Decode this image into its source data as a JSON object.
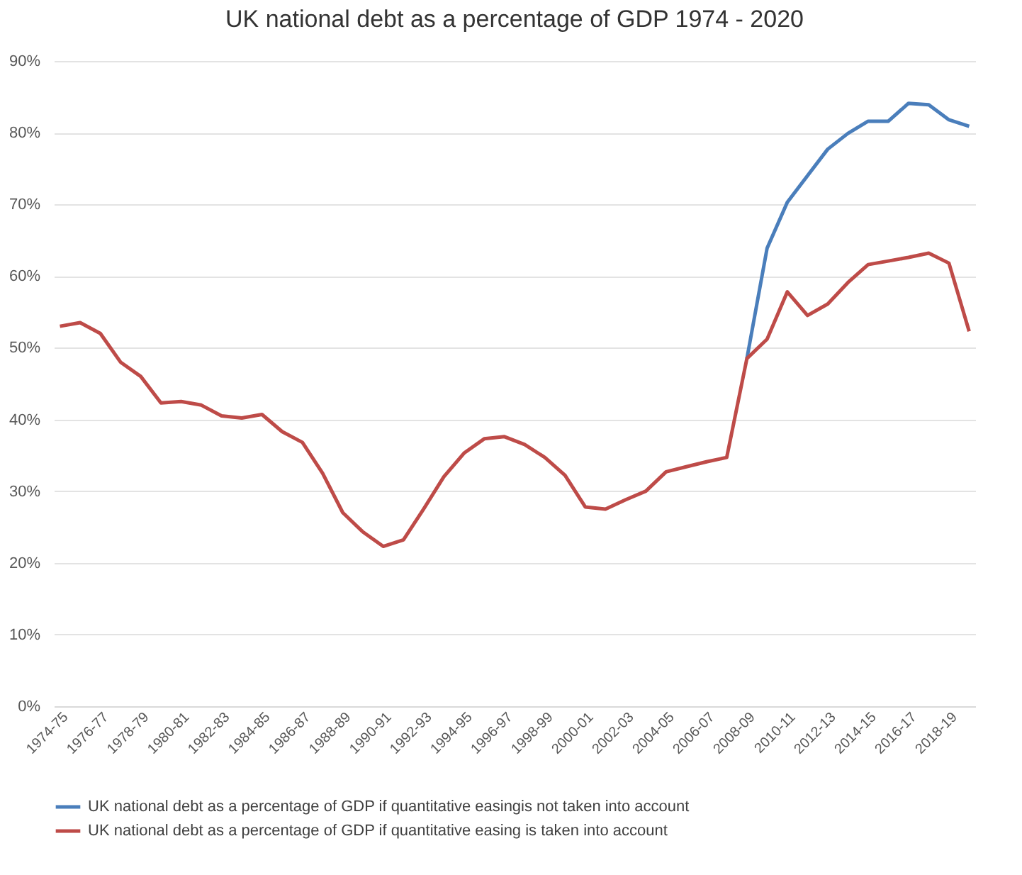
{
  "chart_data": {
    "type": "line",
    "title": "UK national debt as a percentage of GDP 1974 - 2020",
    "categories": [
      "1974-75",
      null,
      "1976-77",
      null,
      "1978-79",
      null,
      "1980-81",
      null,
      "1982-83",
      null,
      "1984-85",
      null,
      "1986-87",
      null,
      "1988-89",
      null,
      "1990-91",
      null,
      "1992-93",
      null,
      "1994-95",
      null,
      "1996-97",
      null,
      "1998-99",
      null,
      "2000-01",
      null,
      "2002-03",
      null,
      "2004-05",
      null,
      "2006-07",
      null,
      "2008-09",
      null,
      "2010-11",
      null,
      "2012-13",
      null,
      "2014-15",
      null,
      "2016-17",
      null,
      "2018-19",
      null
    ],
    "series": [
      {
        "name": "UK national debt as a percentage of GDP if quantitative easingis not taken into account",
        "color": "#4a7ebb",
        "values": [
          null,
          null,
          null,
          null,
          null,
          null,
          null,
          null,
          null,
          null,
          null,
          null,
          null,
          null,
          null,
          null,
          null,
          null,
          null,
          null,
          null,
          null,
          null,
          null,
          null,
          null,
          null,
          null,
          null,
          null,
          null,
          null,
          null,
          null,
          48.5,
          63.9,
          70.3,
          74,
          77.7,
          79.9,
          81.6,
          81.6,
          84.1,
          83.9,
          81.8,
          80.9
        ]
      },
      {
        "name": "UK national debt as a percentage of GDP if quantitative easing is taken into account",
        "color": "#be4b48",
        "values": [
          53,
          53.5,
          52,
          48,
          46,
          42.3,
          42.5,
          42,
          40.5,
          40.2,
          40.7,
          38.3,
          36.8,
          32.5,
          27,
          24.3,
          22.3,
          23.2,
          27.5,
          32,
          35.3,
          37.3,
          37.6,
          36.5,
          34.7,
          32.2,
          27.8,
          27.5,
          28.8,
          30,
          32.7,
          33.4,
          34.1,
          34.7,
          48.5,
          51.2,
          57.8,
          54.5,
          56.1,
          59.1,
          61.6,
          62.1,
          62.6,
          63.2,
          61.8,
          52.3
        ]
      }
    ],
    "ylim": [
      0,
      90
    ],
    "yticks": [
      {
        "value": 0,
        "label": "0%"
      },
      {
        "value": 10,
        "label": "10%"
      },
      {
        "value": 20,
        "label": "20%"
      },
      {
        "value": 30,
        "label": "30%"
      },
      {
        "value": 40,
        "label": "40%"
      },
      {
        "value": 50,
        "label": "50%"
      },
      {
        "value": 60,
        "label": "60%"
      },
      {
        "value": 70,
        "label": "70%"
      },
      {
        "value": 80,
        "label": "80%"
      },
      {
        "value": 90,
        "label": "90%"
      }
    ],
    "grid": "y",
    "legend": "bottom",
    "marker": "none",
    "line_style": "solid"
  }
}
